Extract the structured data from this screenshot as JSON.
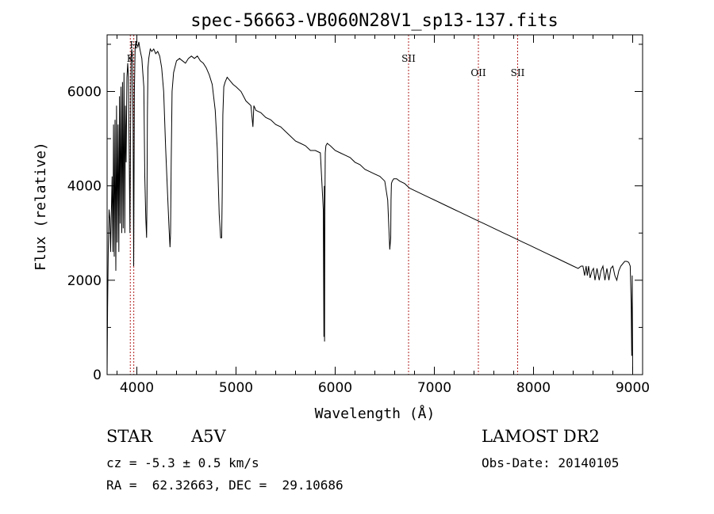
{
  "chart_data": {
    "type": "line",
    "title": "spec-56663-VB060N28V1_sp13-137.fits",
    "xlabel": "Wavelength (Å)",
    "ylabel": "Flux (relative)",
    "xlim": [
      3700,
      9100
    ],
    "ylim": [
      0,
      7200
    ],
    "x_ticks": [
      4000,
      5000,
      6000,
      7000,
      8000,
      9000
    ],
    "x_tick_labels": [
      "4000",
      "5000",
      "6000",
      "7000",
      "8000",
      "9000"
    ],
    "y_ticks": [
      0,
      2000,
      4000,
      6000
    ],
    "y_tick_labels": [
      "0",
      "2000",
      "4000",
      "6000"
    ],
    "series": [
      {
        "name": "spectrum",
        "x": [
          3700,
          3705,
          3712,
          3720,
          3728,
          3735,
          3742,
          3750,
          3758,
          3765,
          3772,
          3780,
          3788,
          3795,
          3802,
          3810,
          3818,
          3825,
          3832,
          3840,
          3848,
          3855,
          3862,
          3870,
          3878,
          3885,
          3892,
          3900,
          3908,
          3915,
          3922,
          3930,
          3936,
          3942,
          3948,
          3955,
          3962,
          3968,
          3975,
          3982,
          3990,
          4000,
          4010,
          4020,
          4030,
          4040,
          4050,
          4060,
          4070,
          4080,
          4090,
          4098,
          4102,
          4106,
          4112,
          4120,
          4135,
          4150,
          4170,
          4190,
          4210,
          4230,
          4250,
          4270,
          4290,
          4310,
          4325,
          4334,
          4340,
          4346,
          4355,
          4370,
          4400,
          4430,
          4460,
          4490,
          4520,
          4550,
          4580,
          4610,
          4640,
          4670,
          4700,
          4730,
          4760,
          4790,
          4810,
          4830,
          4845,
          4855,
          4861,
          4867,
          4877,
          4890,
          4910,
          4930,
          4950,
          4970,
          5000,
          5050,
          5100,
          5150,
          5170,
          5180,
          5190,
          5200,
          5250,
          5300,
          5350,
          5400,
          5450,
          5500,
          5550,
          5600,
          5650,
          5700,
          5750,
          5800,
          5850,
          5880,
          5886,
          5890,
          5893,
          5896,
          5900,
          5906,
          5920,
          5950,
          6000,
          6050,
          6100,
          6150,
          6200,
          6250,
          6300,
          6350,
          6400,
          6450,
          6500,
          6530,
          6550,
          6560,
          6563,
          6567,
          6575,
          6590,
          6620,
          6650,
          6700,
          6750,
          6800,
          6850,
          6900,
          6950,
          7000,
          7050,
          7100,
          7150,
          7200,
          7250,
          7300,
          7350,
          7400,
          7450,
          7500,
          7550,
          7600,
          7650,
          7700,
          7750,
          7800,
          7850,
          7900,
          7950,
          8000,
          8050,
          8100,
          8150,
          8200,
          8250,
          8300,
          8350,
          8400,
          8450,
          8480,
          8498,
          8515,
          8530,
          8542,
          8555,
          8570,
          8590,
          8605,
          8620,
          8640,
          8662,
          8680,
          8700,
          8720,
          8740,
          8760,
          8780,
          8800,
          8820,
          8840,
          8860,
          8880,
          8900,
          8920,
          8940,
          8960,
          8975,
          8985,
          8990,
          8995,
          9000
        ],
        "values": [
          0,
          1400,
          2700,
          3500,
          3300,
          2600,
          3400,
          4200,
          2600,
          5300,
          2500,
          5400,
          2200,
          5700,
          2800,
          5300,
          2600,
          5900,
          3200,
          6100,
          3000,
          6200,
          3100,
          6400,
          3000,
          5700,
          4500,
          6300,
          6600,
          6300,
          4800,
          3000,
          5000,
          6700,
          6900,
          6800,
          5200,
          2300,
          6000,
          6900,
          7050,
          7000,
          6950,
          7050,
          6900,
          6800,
          6700,
          6400,
          6100,
          4200,
          3300,
          2900,
          3800,
          5500,
          6500,
          6700,
          6900,
          6850,
          6900,
          6800,
          6850,
          6750,
          6500,
          6000,
          4800,
          3800,
          3100,
          2700,
          3000,
          4500,
          6000,
          6400,
          6650,
          6700,
          6650,
          6600,
          6700,
          6750,
          6700,
          6750,
          6650,
          6600,
          6500,
          6350,
          6150,
          5600,
          4800,
          3400,
          2900,
          2900,
          3800,
          5500,
          6100,
          6200,
          6300,
          6250,
          6200,
          6150,
          6100,
          6000,
          5800,
          5700,
          5250,
          5700,
          5650,
          5600,
          5550,
          5450,
          5400,
          5300,
          5250,
          5150,
          5050,
          4950,
          4900,
          4850,
          4750,
          4750,
          4700,
          3500,
          800,
          4000,
          700,
          3500,
          4700,
          4850,
          4900,
          4850,
          4750,
          4700,
          4650,
          4600,
          4500,
          4450,
          4350,
          4300,
          4250,
          4200,
          4100,
          3700,
          2650,
          2900,
          3700,
          4050,
          4100,
          4150,
          4150,
          4100,
          4050,
          3950,
          3900,
          3850,
          3800,
          3750,
          3700,
          3650,
          3600,
          3550,
          3500,
          3450,
          3400,
          3350,
          3300,
          3250,
          3200,
          3150,
          3100,
          3050,
          3000,
          2950,
          2900,
          2850,
          2800,
          2750,
          2700,
          2650,
          2600,
          2550,
          2500,
          2450,
          2400,
          2350,
          2300,
          2250,
          2300,
          2300,
          2100,
          2300,
          2100,
          2300,
          2050,
          2200,
          2250,
          2000,
          2250,
          2000,
          2200,
          2300,
          2000,
          2250,
          2000,
          2250,
          2300,
          2100,
          2000,
          2200,
          2300,
          2350,
          2400,
          2400,
          2380,
          2300,
          1500,
          400,
          2100,
          0
        ]
      }
    ],
    "line_markers": [
      {
        "label": "K",
        "wavelength": 3934
      },
      {
        "label": "H",
        "wavelength": 3969
      },
      {
        "label": "SII",
        "wavelength": 6740
      },
      {
        "label": "OII",
        "wavelength": 7444
      },
      {
        "label": "SII",
        "wavelength": 7840
      }
    ],
    "colors": {
      "line": "#000000",
      "marker": "#b22222",
      "frame": "#000000",
      "background": "#ffffff"
    }
  },
  "info": {
    "object_type": "STAR",
    "spectral_class": "A5V",
    "redshift": "cz = -5.3 ± 0.5 km/s",
    "coordinates": "RA =  62.32663, DEC =  29.10686",
    "survey": "LAMOST DR2",
    "obs_date": "Obs-Date: 20140105"
  }
}
